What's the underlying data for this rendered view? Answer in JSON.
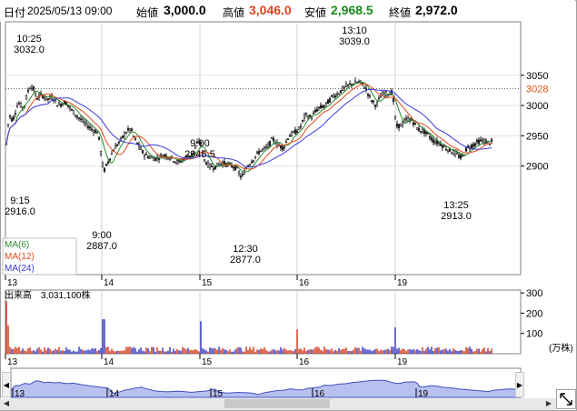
{
  "header": {
    "date_label": "日付",
    "datetime": "2025/05/13 09:00",
    "open_label": "始値",
    "open": "3,000.0",
    "high_label": "高値",
    "high": "3,046.0",
    "low_label": "安値",
    "low": "2,968.5",
    "close_label": "終値",
    "close": "2,972.0"
  },
  "price_axis": {
    "ticks": [
      "3050",
      "3000",
      "2950",
      "2900"
    ],
    "ref_value": "3028",
    "ref_color": "#e05010"
  },
  "annotations": [
    {
      "time": "10:25",
      "price": "3032.0"
    },
    {
      "time": "9:15",
      "price": "2916.0"
    },
    {
      "time": "9:00",
      "price": "2887.0"
    },
    {
      "time": "9:00",
      "price": "2945.5"
    },
    {
      "time": "12:30",
      "price": "2877.0"
    },
    {
      "time": "13:10",
      "price": "3039.0"
    },
    {
      "time": "13:25",
      "price": "2913.0"
    }
  ],
  "legend": [
    {
      "label": "MA(6)",
      "color": "#2e8b2e"
    },
    {
      "label": "MA(12)",
      "color": "#e04a1a"
    },
    {
      "label": "MA(24)",
      "color": "#3a3ae0"
    }
  ],
  "date_axis": [
    "13",
    "14",
    "15",
    "16",
    "19"
  ],
  "volume": {
    "title": "出来高　3,031,100株",
    "ticks": [
      "300",
      "200",
      "100"
    ],
    "unit": "(万株)"
  },
  "overview_dates": [
    "13",
    "14",
    "15",
    "16",
    "19"
  ],
  "controls": {
    "scroll_left": "◀",
    "scroll_right": "▶",
    "hscroll_left": "◀",
    "hscroll_right": "▶"
  },
  "colors": {
    "up": "#1a1a1a",
    "ma6": "#2e8b2e",
    "ma12": "#e04a1a",
    "ma24": "#3a3ae0",
    "volume_up": "#d03010",
    "volume_down": "#3030c0",
    "overview_fill": "#b8c0f0"
  }
}
